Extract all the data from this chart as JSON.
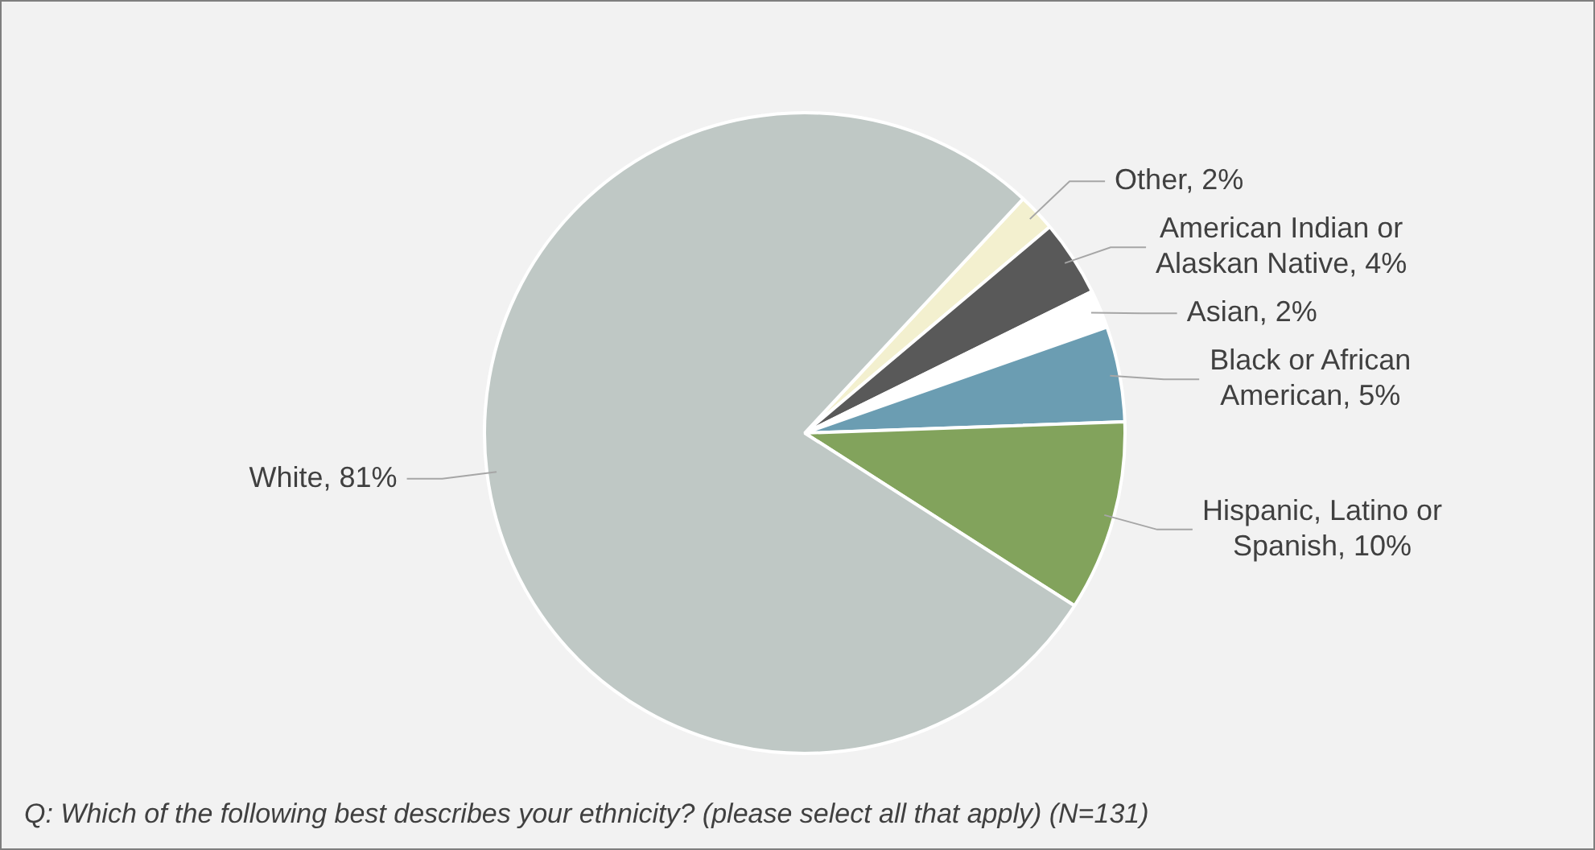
{
  "chart_data": {
    "type": "pie",
    "categories": [
      "Other",
      "American Indian or Alaskan Native",
      "Asian",
      "Black or African American",
      "Hispanic, Latino or Spanish",
      "White"
    ],
    "values": [
      2,
      4,
      2,
      5,
      10,
      81
    ],
    "value_labels": [
      "2%",
      "4%",
      "2%",
      "5%",
      "10%",
      "81%"
    ],
    "colors": [
      "#f3f0cf",
      "#595959",
      "#ffffff",
      "#6b9db2",
      "#82a35c",
      "#bfc8c5"
    ],
    "legend": false,
    "annotations": [
      "Q: Which of the following best describes your ethnicity? (please select all that apply) (N=131)"
    ]
  }
}
